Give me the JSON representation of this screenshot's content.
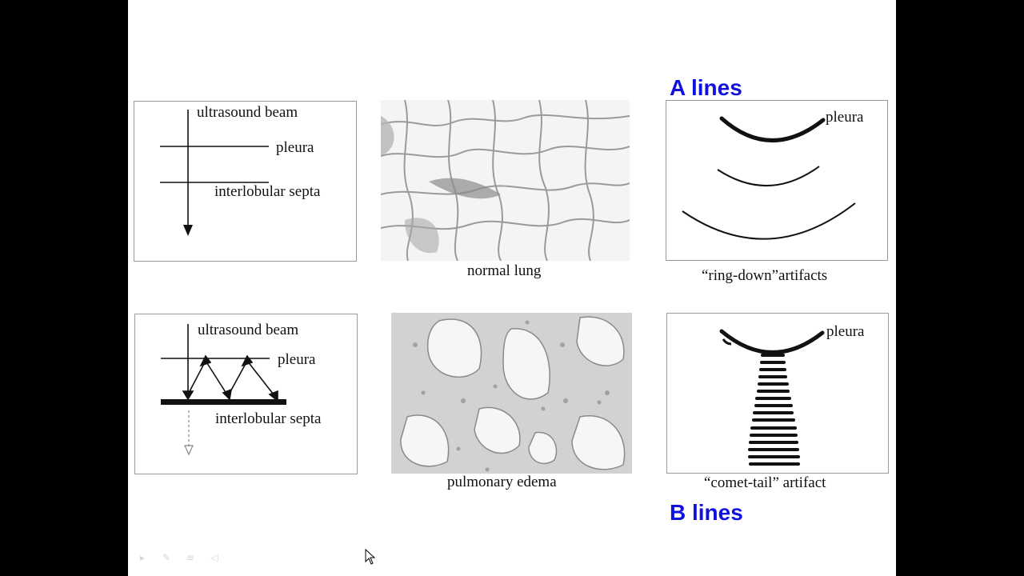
{
  "headings": {
    "a_lines": "A lines",
    "b_lines": "B lines"
  },
  "top_row": {
    "beam_label": "ultrasound beam",
    "pleura_label": "pleura",
    "septa_label": "interlobular septa",
    "histology_caption": "normal lung",
    "artifact_pleura_label": "pleura",
    "artifact_caption": "“ring-down”artifacts"
  },
  "bottom_row": {
    "beam_label": "ultrasound beam",
    "pleura_label": "pleura",
    "septa_label": "interlobular septa",
    "histology_caption": "pulmonary edema",
    "artifact_pleura_label": "pleura",
    "artifact_caption": "“comet-tail” artifact"
  },
  "colors": {
    "heading": "#1010e0",
    "frame": "#9a9a9a",
    "ink": "#111111"
  },
  "icons": [
    "pointer-icon",
    "pen-icon",
    "menu-icon",
    "speaker-icon",
    "mouse-cursor-icon"
  ]
}
